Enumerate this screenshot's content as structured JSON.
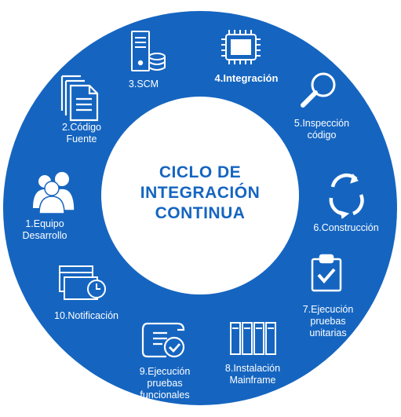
{
  "diagram": {
    "title_lines": [
      "CICLO DE",
      "INTEGRACIÓN",
      "CONTINUA"
    ],
    "ring_color": "#1565c0",
    "inner_color": "#ffffff",
    "title_color": "#1565c0",
    "steps": [
      {
        "lines": [
          "1.Equipo",
          "Desarrollo"
        ],
        "icon": "team-icon"
      },
      {
        "lines": [
          "2.Código",
          "Fuente"
        ],
        "icon": "documents-icon"
      },
      {
        "lines": [
          "3.SCM"
        ],
        "icon": "server-database-icon"
      },
      {
        "lines": [
          "4.Integración"
        ],
        "icon": "chip-icon"
      },
      {
        "lines": [
          "5.Inspección",
          "código"
        ],
        "icon": "magnifier-icon"
      },
      {
        "lines": [
          "6.Construcción"
        ],
        "icon": "refresh-cycle-icon"
      },
      {
        "lines": [
          "7.Ejecución",
          "pruebas",
          "unitarias"
        ],
        "icon": "clipboard-check-icon"
      },
      {
        "lines": [
          "8.Instalación",
          "Mainframe"
        ],
        "icon": "mainframe-icon"
      },
      {
        "lines": [
          "9.Ejecución",
          "pruebas",
          "funcionales"
        ],
        "icon": "scroll-check-icon"
      },
      {
        "lines": [
          "10.Notificación"
        ],
        "icon": "notification-clock-icon"
      }
    ]
  }
}
